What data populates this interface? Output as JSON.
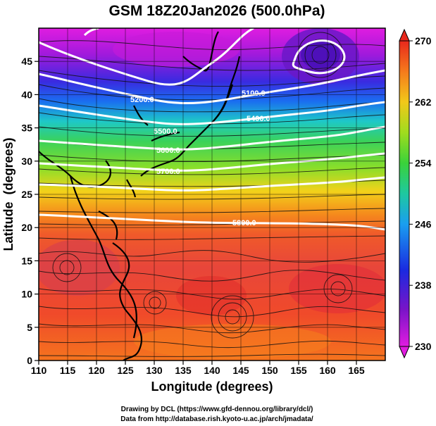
{
  "title": "GSM 18Z20Jan2026 (500.0hPa)",
  "x_axis": {
    "label": "Longitude (degrees)",
    "range": [
      110,
      170
    ],
    "ticks": [
      "110",
      "115",
      "120",
      "125",
      "130",
      "135",
      "140",
      "145",
      "150",
      "155",
      "160",
      "165"
    ]
  },
  "y_axis": {
    "label": "Latitude  (degrees)",
    "range": [
      0,
      50
    ],
    "ticks": [
      "0",
      "5",
      "10",
      "15",
      "20",
      "25",
      "30",
      "35",
      "40",
      "45"
    ]
  },
  "colorbar": {
    "range": [
      230,
      270
    ],
    "ticks": [
      "230",
      "238",
      "246",
      "254",
      "262",
      "270"
    ]
  },
  "contours": [
    {
      "label": "5100.0"
    },
    {
      "label": "5200.0"
    },
    {
      "label": "5400.0"
    },
    {
      "label": "5500.0"
    },
    {
      "label": "5600.0"
    },
    {
      "label": "5700.0"
    },
    {
      "label": "5800.0"
    }
  ],
  "footer": {
    "line1": "Drawing by DCL (https://www.gfd-dennou.org/library/dcl/)",
    "line2": "Data from http://database.rish.kyoto-u.ac.jp/arch/jmadata/"
  },
  "colors": {
    "deep_red": "#d42a1c",
    "red": "#f04a2a",
    "orange": "#f58a1c",
    "yellow": "#f2d21a",
    "green": "#5fd23a",
    "cyan": "#1ec8c8",
    "blue": "#1a4fe0",
    "purple": "#6a14c8",
    "magenta": "#e01ce0"
  }
}
